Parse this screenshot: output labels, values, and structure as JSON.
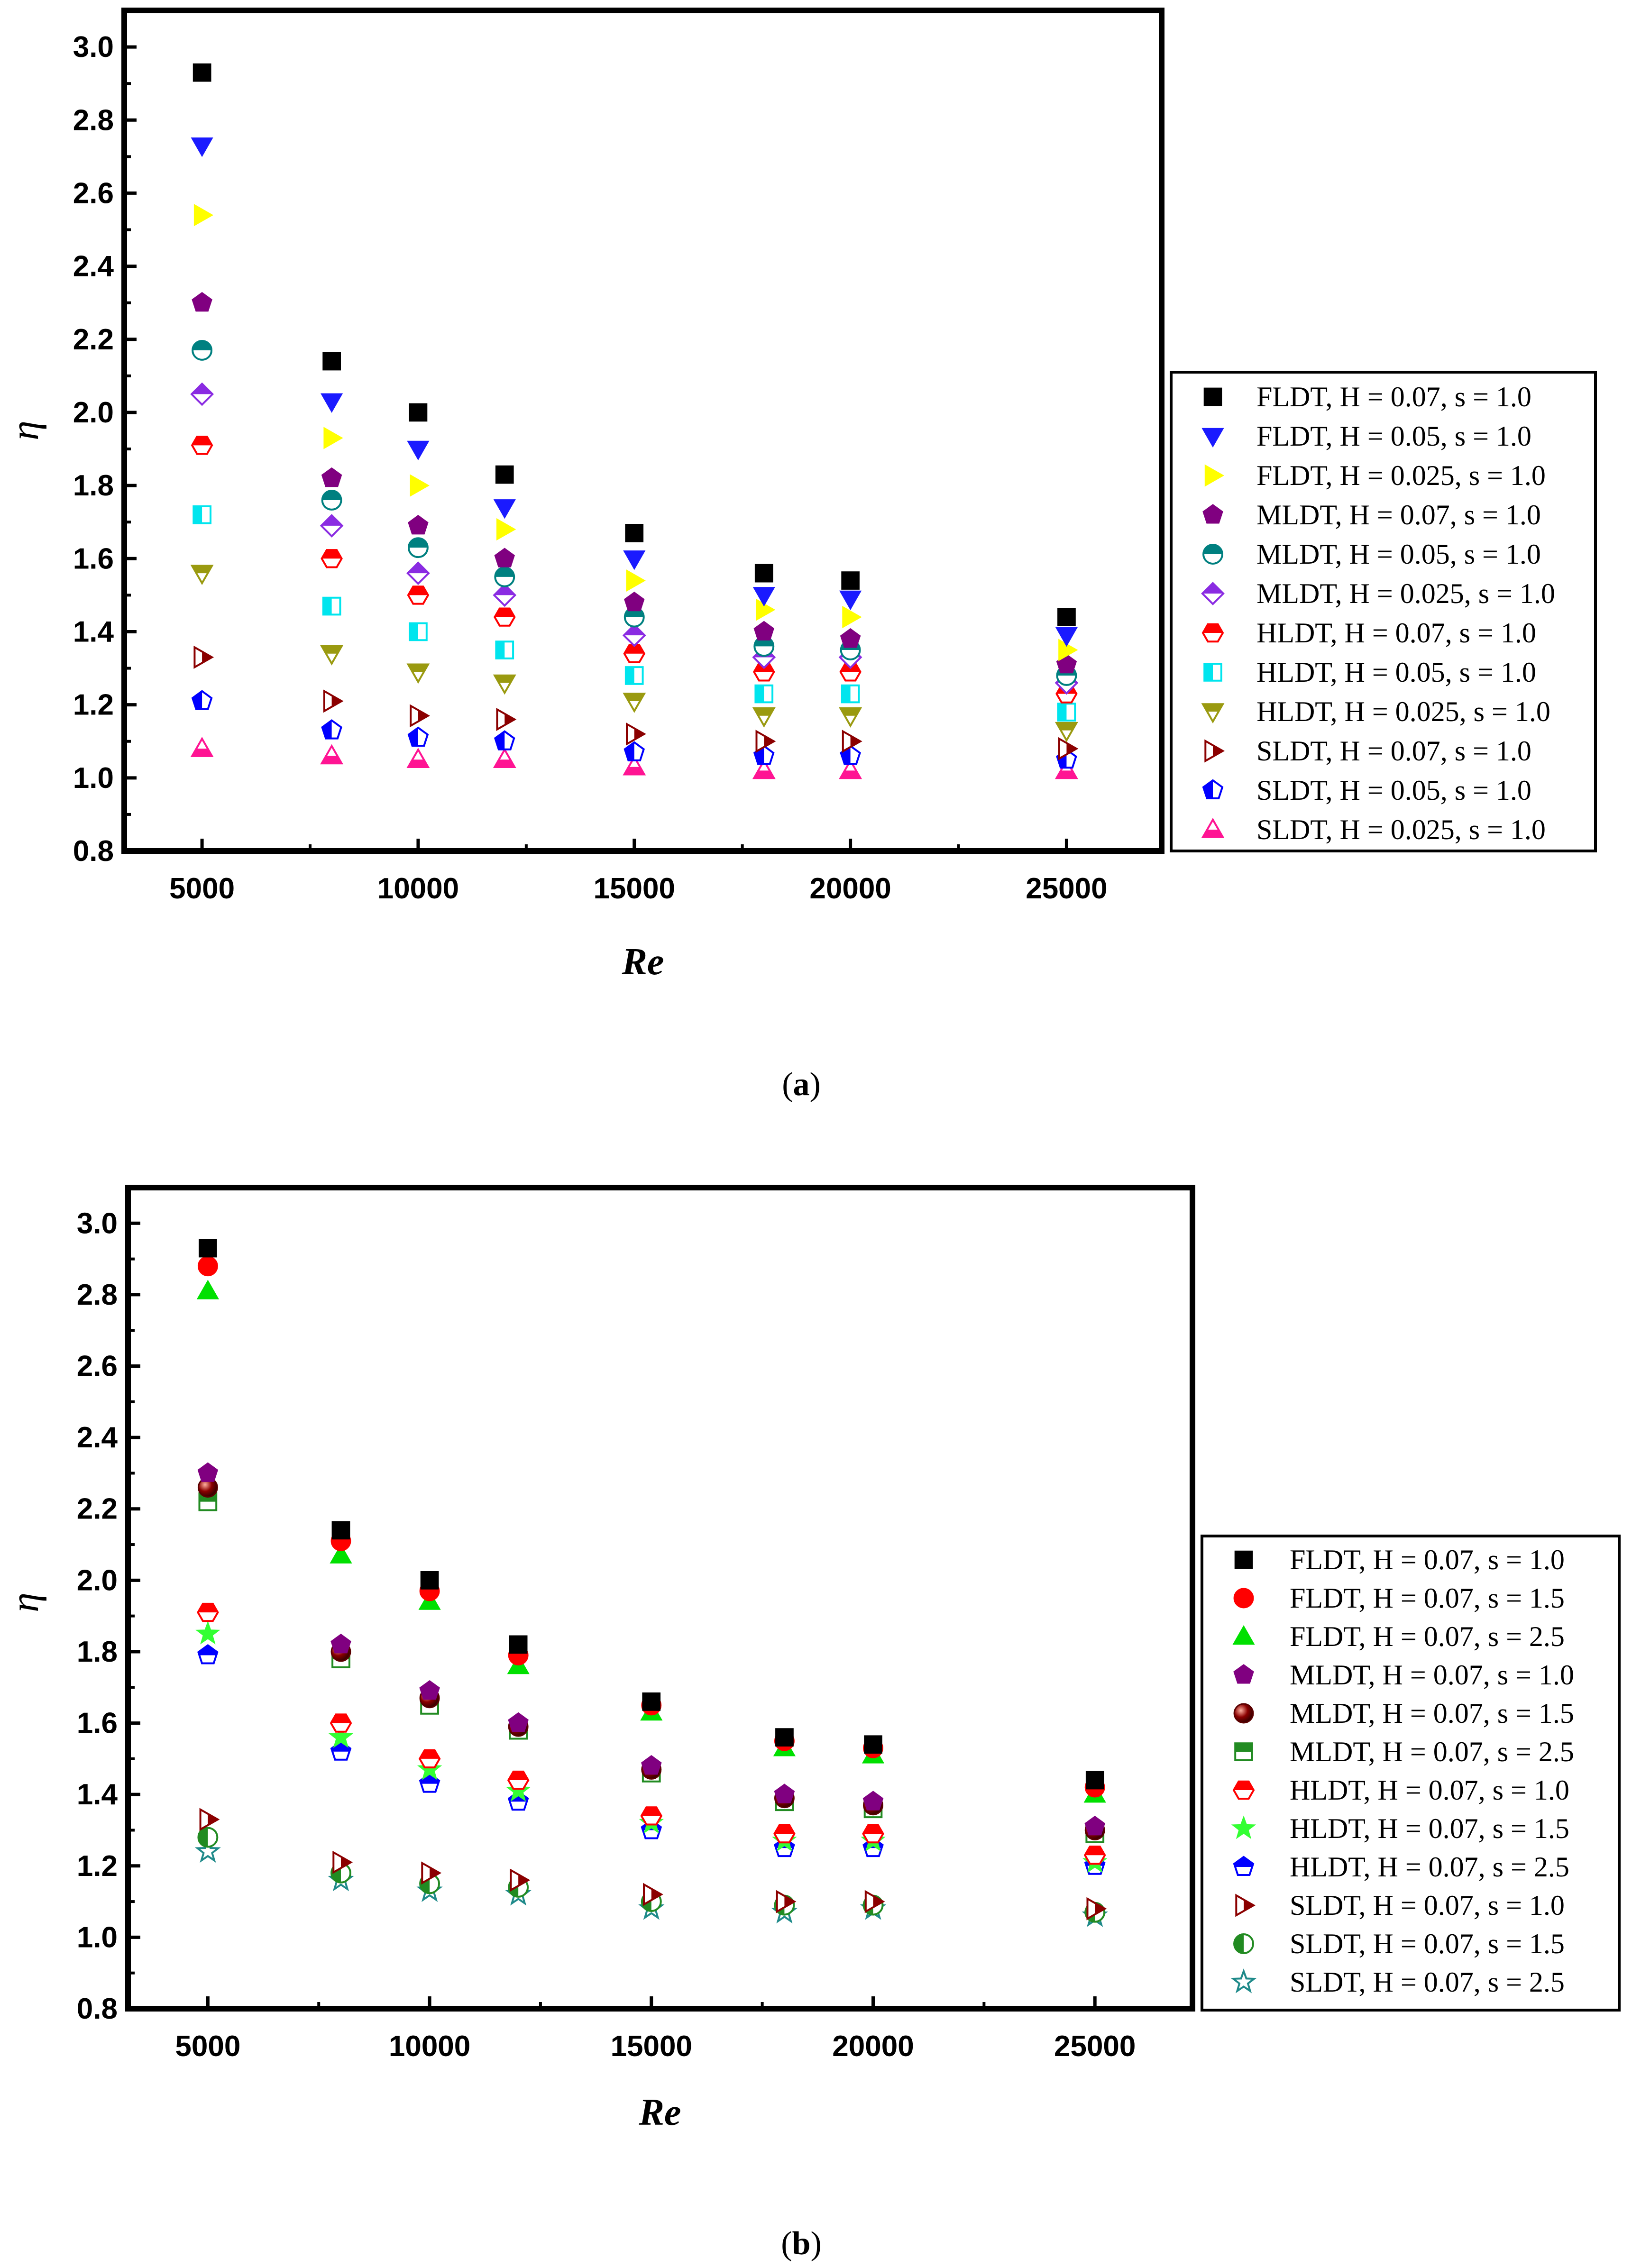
{
  "chart_data": [
    {
      "type": "scatter",
      "panel_label": "a",
      "xlabel": "Re",
      "ylabel": "η",
      "xlim": [
        3200,
        27200
      ],
      "ylim": [
        0.8,
        3.1
      ],
      "xticks": [
        5000,
        10000,
        15000,
        20000,
        25000
      ],
      "yticks": [
        0.8,
        1.0,
        1.2,
        1.4,
        1.6,
        1.8,
        2.0,
        2.2,
        2.4,
        2.6,
        2.8,
        3.0
      ],
      "ytick_labels": [
        "0.8",
        "1.0",
        "1.2",
        "1.4",
        "1.6",
        "1.8",
        "2.0",
        "2.2",
        "2.4",
        "2.6",
        "2.8",
        "3.0"
      ],
      "x": [
        5000,
        8000,
        10000,
        12000,
        15000,
        18000,
        20000,
        25000
      ],
      "legend_position": "outside-right",
      "series": [
        {
          "name": "FLDT, H = 0.07, s = 1.0",
          "marker": "square",
          "color": "#000000",
          "fill": "full",
          "values": [
            2.93,
            2.14,
            2.0,
            1.83,
            1.67,
            1.56,
            1.54,
            1.44
          ]
        },
        {
          "name": "FLDT, H = 0.05, s = 1.0",
          "marker": "triangle-down",
          "color": "#1a1aff",
          "fill": "full",
          "values": [
            2.73,
            2.03,
            1.9,
            1.74,
            1.6,
            1.5,
            1.49,
            1.39
          ]
        },
        {
          "name": "FLDT, H = 0.025, s = 1.0",
          "marker": "triangle-right",
          "color": "#ffff00",
          "fill": "full",
          "values": [
            2.54,
            1.93,
            1.8,
            1.68,
            1.54,
            1.46,
            1.44,
            1.35
          ]
        },
        {
          "name": "MLDT, H = 0.07, s = 1.0",
          "marker": "pentagon",
          "color": "#800080",
          "fill": "full",
          "values": [
            2.3,
            1.82,
            1.69,
            1.6,
            1.48,
            1.4,
            1.38,
            1.31
          ]
        },
        {
          "name": "MLDT, H = 0.05, s = 1.0",
          "marker": "circle",
          "color": "#008080",
          "fill": "top",
          "values": [
            2.17,
            1.76,
            1.63,
            1.55,
            1.44,
            1.36,
            1.35,
            1.28
          ]
        },
        {
          "name": "MLDT, H = 0.025, s = 1.0",
          "marker": "diamond",
          "color": "#8a2be2",
          "fill": "top",
          "values": [
            2.05,
            1.69,
            1.56,
            1.5,
            1.39,
            1.33,
            1.33,
            1.26
          ]
        },
        {
          "name": "HLDT, H = 0.07, s = 1.0",
          "marker": "hexagon",
          "color": "#ff0000",
          "fill": "top",
          "values": [
            1.91,
            1.6,
            1.5,
            1.44,
            1.34,
            1.29,
            1.29,
            1.23
          ]
        },
        {
          "name": "HLDT, H = 0.05, s = 1.0",
          "marker": "square",
          "color": "#00e5ee",
          "fill": "left",
          "values": [
            1.72,
            1.47,
            1.4,
            1.35,
            1.28,
            1.23,
            1.23,
            1.18
          ]
        },
        {
          "name": "HLDT, H = 0.025, s = 1.0",
          "marker": "triangle-down",
          "color": "#9a9a10",
          "fill": "top",
          "values": [
            1.56,
            1.34,
            1.29,
            1.26,
            1.21,
            1.17,
            1.17,
            1.13
          ]
        },
        {
          "name": "SLDT, H = 0.07, s = 1.0",
          "marker": "triangle-right",
          "color": "#8b0000",
          "fill": "right",
          "values": [
            1.33,
            1.21,
            1.17,
            1.16,
            1.12,
            1.1,
            1.1,
            1.08
          ]
        },
        {
          "name": "SLDT, H = 0.05, s = 1.0",
          "marker": "pentagon",
          "color": "#0000ff",
          "fill": "left",
          "values": [
            1.21,
            1.13,
            1.11,
            1.1,
            1.07,
            1.06,
            1.06,
            1.05
          ]
        },
        {
          "name": "SLDT, H = 0.025, s = 1.0",
          "marker": "triangle-up",
          "color": "#ff1493",
          "fill": "bottom",
          "values": [
            1.08,
            1.06,
            1.05,
            1.05,
            1.03,
            1.02,
            1.02,
            1.02
          ]
        }
      ]
    },
    {
      "type": "scatter",
      "panel_label": "b",
      "xlabel": "Re",
      "ylabel": "η",
      "xlim": [
        3200,
        27200
      ],
      "ylim": [
        0.8,
        3.1
      ],
      "xticks": [
        5000,
        10000,
        15000,
        20000,
        25000
      ],
      "yticks": [
        0.8,
        1.0,
        1.2,
        1.4,
        1.6,
        1.8,
        2.0,
        2.2,
        2.4,
        2.6,
        2.8,
        3.0
      ],
      "ytick_labels": [
        "0.8",
        "1.0",
        "1.2",
        "1.4",
        "1.6",
        "1.8",
        "2.0",
        "2.2",
        "2.4",
        "2.6",
        "2.8",
        "3.0"
      ],
      "x": [
        5000,
        8000,
        10000,
        12000,
        15000,
        18000,
        20000,
        25000
      ],
      "legend_position": "outside-right",
      "series": [
        {
          "name": "FLDT, H = 0.07, s = 1.0",
          "marker": "square",
          "color": "#000000",
          "fill": "full",
          "values": [
            2.93,
            2.14,
            2.0,
            1.82,
            1.66,
            1.56,
            1.54,
            1.44
          ]
        },
        {
          "name": "FLDT, H = 0.07, s = 1.5",
          "marker": "circle",
          "color": "#ff0000",
          "fill": "full",
          "values": [
            2.88,
            2.11,
            1.97,
            1.79,
            1.65,
            1.55,
            1.53,
            1.42
          ]
        },
        {
          "name": "FLDT, H = 0.07, s = 2.5",
          "marker": "triangle-up",
          "color": "#00e000",
          "fill": "full",
          "values": [
            2.81,
            2.07,
            1.94,
            1.76,
            1.63,
            1.53,
            1.51,
            1.4
          ]
        },
        {
          "name": "MLDT, H = 0.07, s = 1.0",
          "marker": "pentagon",
          "color": "#800080",
          "fill": "full",
          "values": [
            2.3,
            1.82,
            1.69,
            1.6,
            1.48,
            1.4,
            1.38,
            1.31
          ]
        },
        {
          "name": "MLDT, H = 0.07, s = 1.5",
          "marker": "sphere",
          "color": "#8b0000",
          "fill": "full",
          "values": [
            2.26,
            1.8,
            1.67,
            1.59,
            1.47,
            1.39,
            1.37,
            1.3
          ]
        },
        {
          "name": "MLDT, H = 0.07, s = 2.5",
          "marker": "square",
          "color": "#228b22",
          "fill": "top",
          "values": [
            2.22,
            1.78,
            1.65,
            1.58,
            1.46,
            1.38,
            1.36,
            1.29
          ]
        },
        {
          "name": "HLDT, H = 0.07, s = 1.0",
          "marker": "hexagon",
          "color": "#ff0000",
          "fill": "top",
          "values": [
            1.91,
            1.6,
            1.5,
            1.44,
            1.34,
            1.29,
            1.29,
            1.23
          ]
        },
        {
          "name": "HLDT, H = 0.07, s = 1.5",
          "marker": "star",
          "color": "#33ff33",
          "fill": "full",
          "values": [
            1.85,
            1.56,
            1.47,
            1.41,
            1.32,
            1.27,
            1.27,
            1.21
          ]
        },
        {
          "name": "HLDT, H = 0.07, s = 2.5",
          "marker": "pentagon",
          "color": "#0000ff",
          "fill": "top",
          "values": [
            1.79,
            1.52,
            1.43,
            1.38,
            1.3,
            1.25,
            1.25,
            1.2
          ]
        },
        {
          "name": "SLDT, H = 0.07, s = 1.0",
          "marker": "triangle-right",
          "color": "#8b0000",
          "fill": "right",
          "values": [
            1.33,
            1.21,
            1.18,
            1.16,
            1.12,
            1.1,
            1.1,
            1.08
          ]
        },
        {
          "name": "SLDT, H = 0.07, s = 1.5",
          "marker": "circle",
          "color": "#228b22",
          "fill": "left",
          "values": [
            1.28,
            1.18,
            1.15,
            1.14,
            1.1,
            1.09,
            1.09,
            1.07
          ]
        },
        {
          "name": "SLDT, H = 0.07, s = 2.5",
          "marker": "star",
          "color": "#1f8a8a",
          "fill": "none",
          "values": [
            1.24,
            1.16,
            1.13,
            1.12,
            1.08,
            1.07,
            1.08,
            1.06
          ]
        }
      ]
    }
  ]
}
